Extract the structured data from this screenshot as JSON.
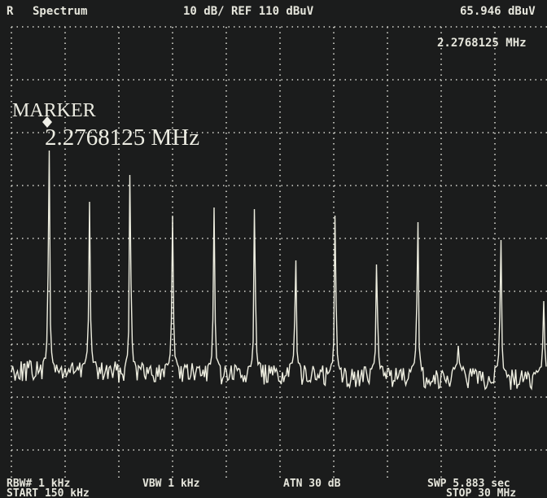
{
  "header": {
    "mode": "R",
    "title": "Spectrum",
    "scale": "10 dB/ REF 110 dBuV",
    "marker_level": "65.946 dBuV"
  },
  "marker_readout": "2.2768125 MHz",
  "marker": {
    "label": "MARKER",
    "frequency": "2.2768125 MHz"
  },
  "footer": {
    "rbw": "RBW# 1 kHz",
    "vbw": "VBW 1 kHz",
    "atn": "ATN 30 dB",
    "swp": "SWP 5.883 sec",
    "start": "START 150 kHz",
    "stop": "STOP 30 MHz"
  }
}
